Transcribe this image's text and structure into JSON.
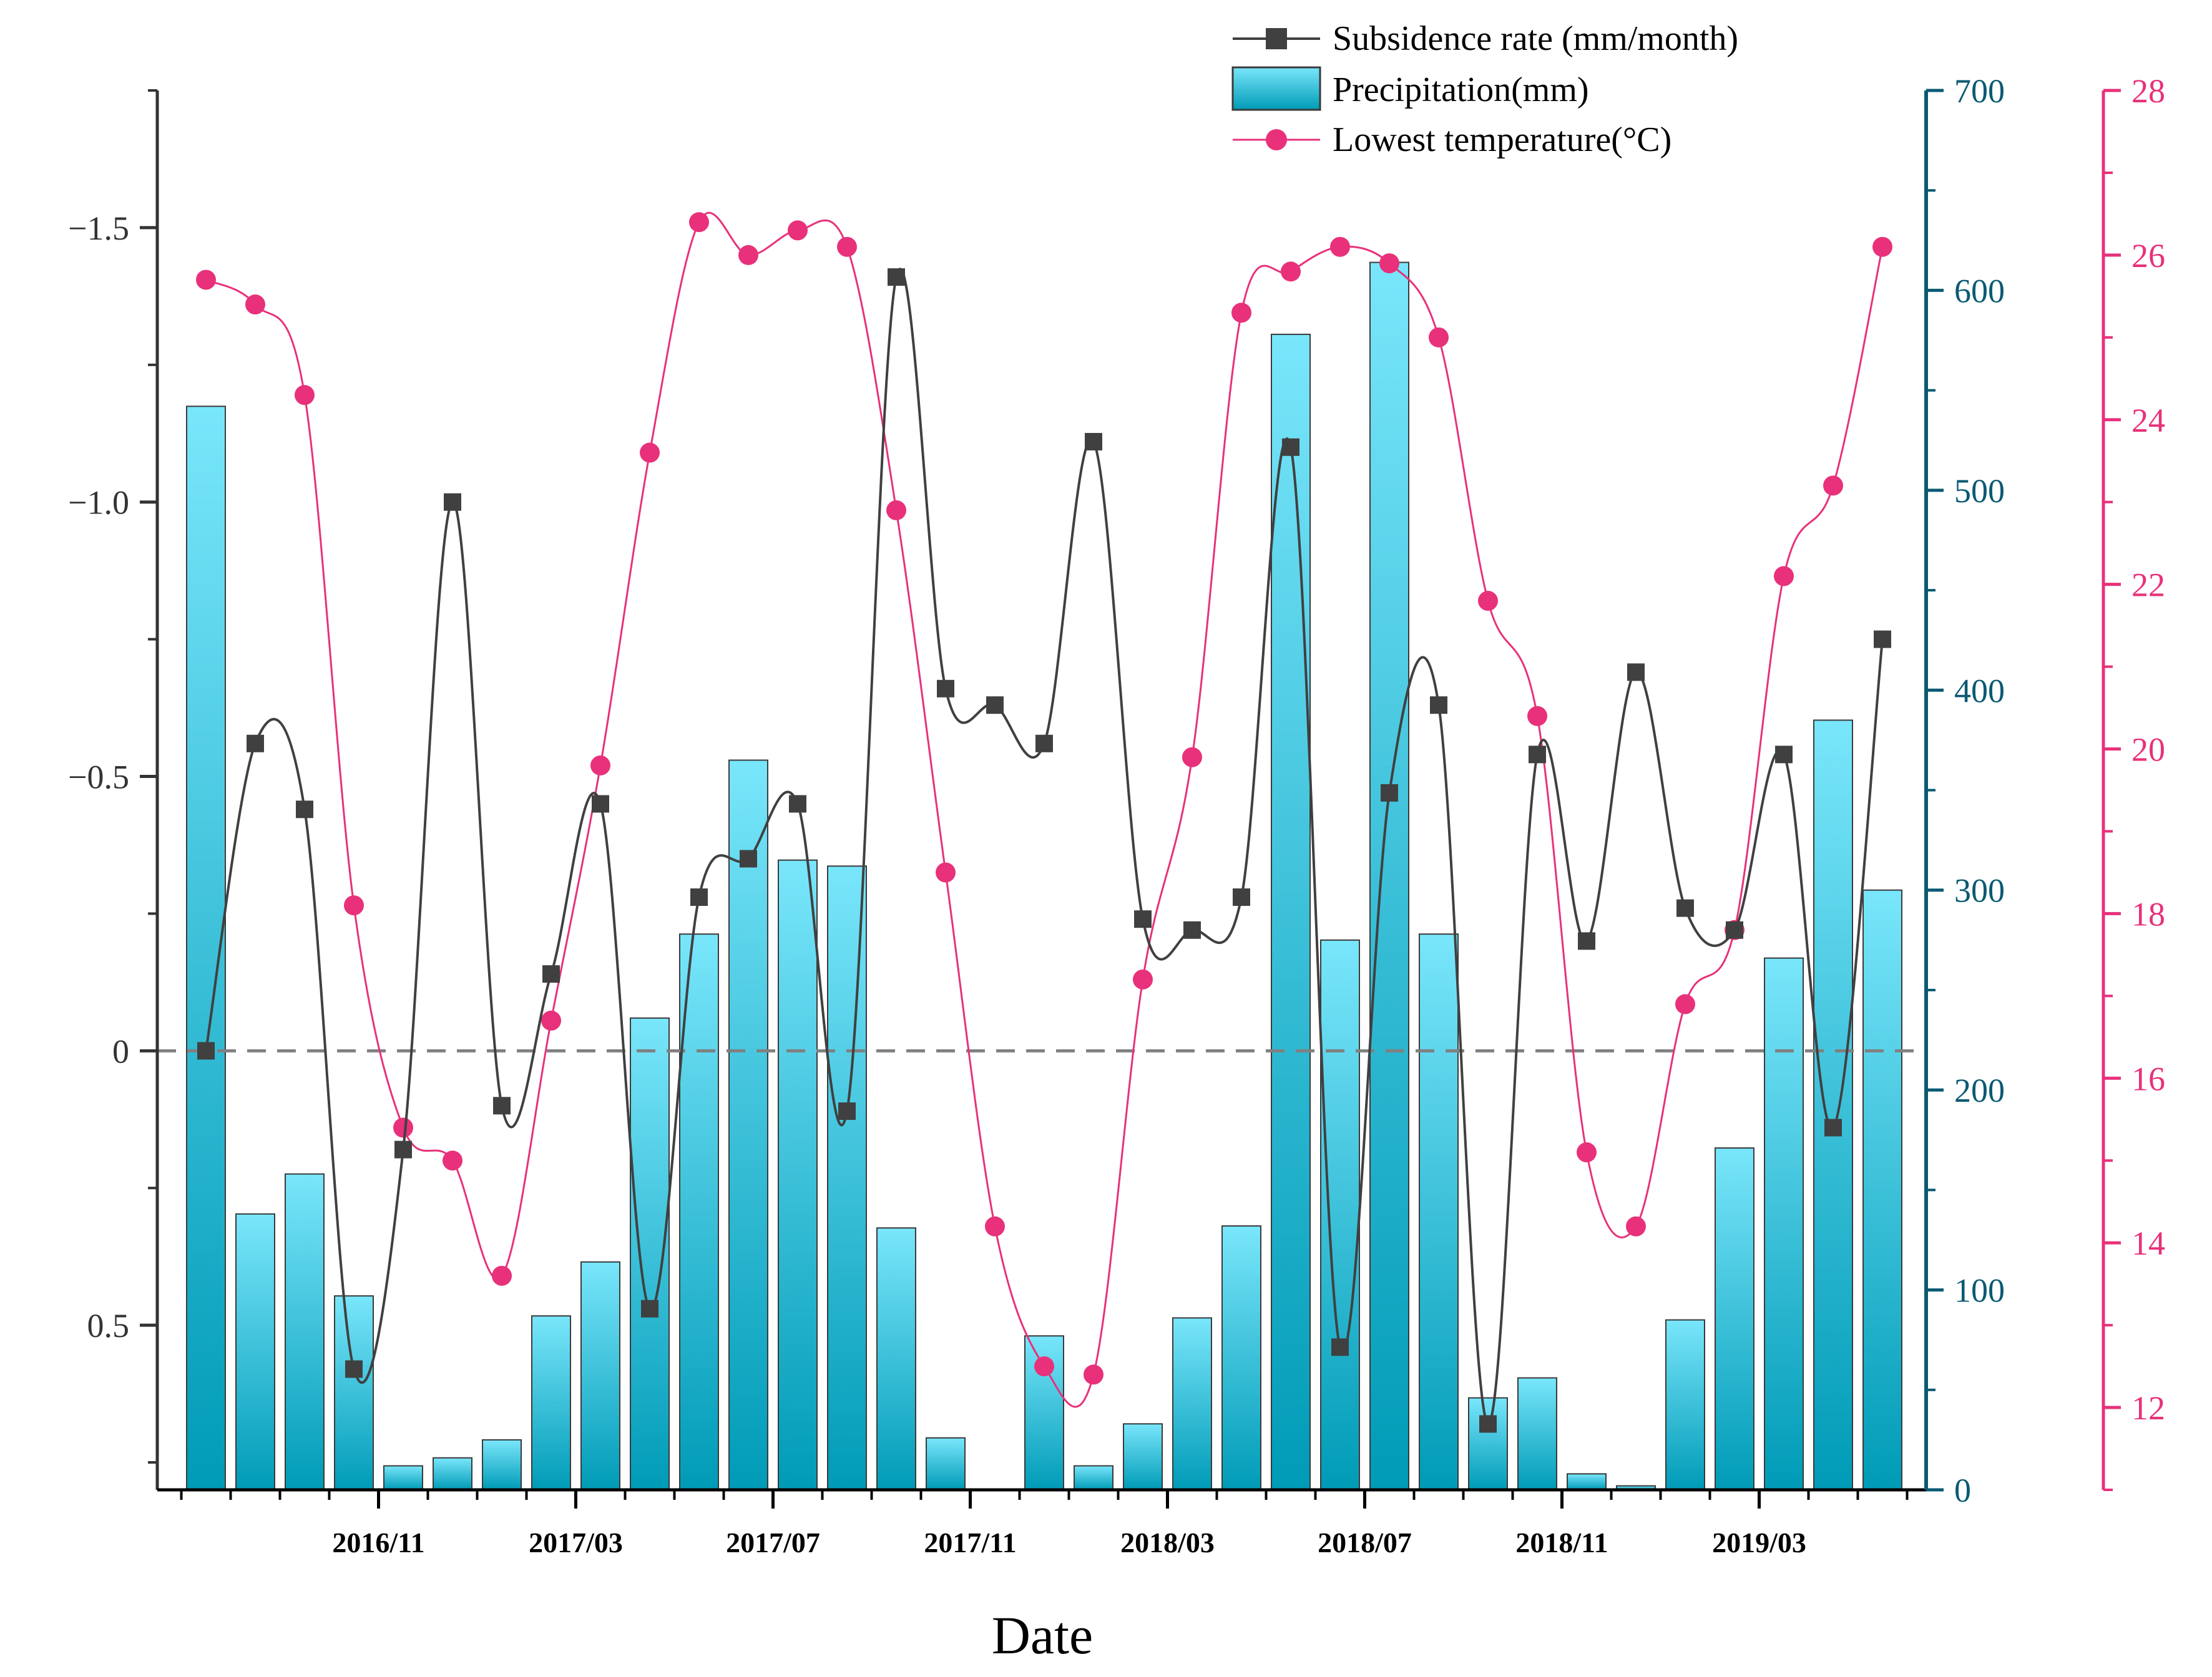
{
  "chart_data": {
    "type": "bar+line",
    "xlabel": "Date",
    "x": [
      "2016/08",
      "2016/09",
      "2016/10",
      "2016/11",
      "2016/12",
      "2017/01",
      "2017/02",
      "2017/03",
      "2017/04",
      "2017/05",
      "2017/06",
      "2017/07",
      "2017/08",
      "2017/09",
      "2017/10",
      "2017/11",
      "2017/12",
      "2018/01",
      "2018/02",
      "2018/03",
      "2018/04",
      "2018/05",
      "2018/06",
      "2018/07",
      "2018/08",
      "2018/09",
      "2018/10",
      "2018/11",
      "2018/12",
      "2019/01",
      "2019/02",
      "2019/03",
      "2019/04",
      "2019/05",
      "2019/06"
    ],
    "x_tick_labels": [
      "2016/11",
      "2017/03",
      "2017/07",
      "2017/11",
      "2018/03",
      "2018/07",
      "2018/11",
      "2019/03"
    ],
    "x_tick_index": [
      3,
      7,
      11,
      15,
      19,
      23,
      27,
      31
    ],
    "series": [
      {
        "name": "Subsidence rate (mm/month)",
        "type": "line",
        "axis": "left",
        "color": "#404040",
        "marker": "square",
        "values": [
          0,
          -0.56,
          -0.44,
          0.58,
          0.18,
          -1.0,
          0.1,
          -0.14,
          -0.45,
          0.47,
          -0.28,
          -0.35,
          -0.45,
          0.11,
          -1.41,
          -0.66,
          -0.63,
          -0.56,
          -1.11,
          -0.24,
          -0.22,
          -0.28,
          -1.1,
          0.54,
          -0.47,
          -0.63,
          0.68,
          -0.54,
          -0.2,
          -0.69,
          -0.26,
          -0.22,
          -0.54,
          0.14,
          -0.75
        ]
      },
      {
        "name": "Precipitation(mm)",
        "type": "bar",
        "axis": "middle",
        "color": "#5bd7ef",
        "values": [
          542,
          138,
          158,
          97,
          12,
          16,
          25,
          87,
          114,
          236,
          278,
          365,
          315,
          312,
          131,
          26,
          0,
          77,
          12,
          33,
          86,
          132,
          578,
          275,
          614,
          278,
          46,
          56,
          8,
          2,
          85,
          171,
          266,
          385,
          300
        ]
      },
      {
        "name": "Lowest temperature(°C)",
        "type": "line",
        "axis": "right",
        "color": "#e8317a",
        "marker": "circle",
        "values": [
          25.7,
          25.4,
          24.3,
          18.1,
          15.4,
          15.0,
          13.6,
          16.7,
          19.8,
          23.6,
          26.4,
          26.0,
          26.3,
          26.1,
          22.9,
          18.5,
          14.2,
          12.5,
          12.4,
          17.2,
          19.9,
          25.3,
          25.8,
          26.1,
          25.9,
          25.0,
          21.8,
          20.4,
          15.1,
          14.2,
          16.9,
          17.8,
          22.1,
          23.2,
          26.1
        ]
      }
    ],
    "axes": {
      "left": {
        "ylim": [
          0.8,
          -1.75
        ],
        "inverted": true,
        "ticks": [
          -1.5,
          -1.0,
          -0.5,
          0,
          0.5
        ],
        "tick_labels": [
          "−1.5",
          "−1.0",
          "−0.5",
          "0",
          "0.5"
        ]
      },
      "middle": {
        "ylim": [
          0,
          700
        ],
        "ticks": [
          0,
          100,
          200,
          300,
          400,
          500,
          600,
          700
        ],
        "tick_labels": [
          "0",
          "100",
          "200",
          "300",
          "400",
          "500",
          "600",
          "700"
        ]
      },
      "right": {
        "ylim": [
          11,
          28
        ],
        "ticks": [
          12,
          14,
          16,
          18,
          20,
          22,
          24,
          26,
          28
        ],
        "tick_labels": [
          "12",
          "14",
          "16",
          "18",
          "20",
          "22",
          "24",
          "26",
          "28"
        ]
      }
    },
    "zero_line": true,
    "grid": false,
    "legend_position": "top-center"
  },
  "colors": {
    "bar_top": "#79e6fb",
    "bar_bottom": "#009bb7",
    "middle_axis": "#0a5a72",
    "right_axis": "#e8317a",
    "left_axis": "#333333"
  }
}
